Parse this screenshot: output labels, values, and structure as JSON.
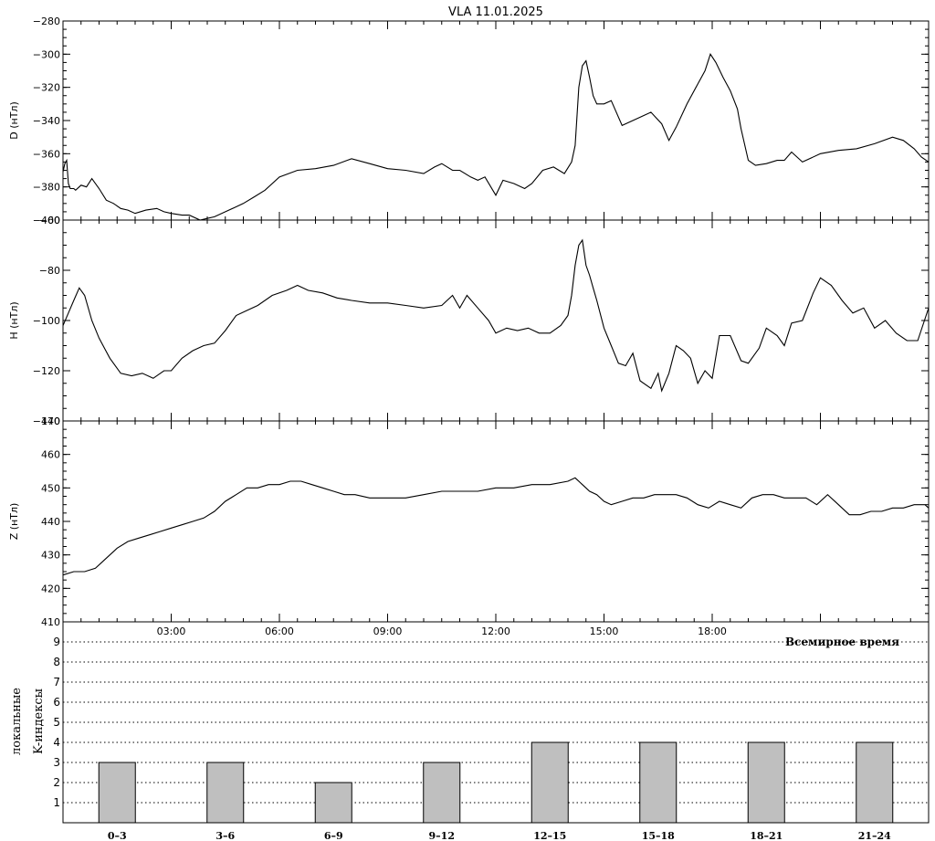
{
  "title": "VLA   11.01.2025",
  "time_axis_label": "Всемирное время",
  "time_ticks": [
    "03:00",
    "06:00",
    "09:00",
    "12:00",
    "15:00",
    "18:00"
  ],
  "k_axis_label_1": "локальные",
  "k_axis_label_2": "K-индексы",
  "colors": {
    "line": "#000000",
    "bar": "#bfbfbf",
    "frame": "#000000"
  },
  "chart_data": [
    {
      "type": "line",
      "ylabel": "D (нТл)",
      "ylim": [
        -400,
        -280
      ],
      "yticks": [
        "-280",
        "-300",
        "-320",
        "-340",
        "-360",
        "-380",
        "-400"
      ],
      "x_unit": "hours UT",
      "xlim": [
        0,
        24
      ],
      "x": [
        0.0,
        0.05,
        0.1,
        0.15,
        0.2,
        0.3,
        0.35,
        0.5,
        0.65,
        0.8,
        1.0,
        1.2,
        1.4,
        1.6,
        1.8,
        2.0,
        2.3,
        2.6,
        2.8,
        3.0,
        3.3,
        3.5,
        3.8,
        4.0,
        4.2,
        4.5,
        4.8,
        5.0,
        5.3,
        5.6,
        6.0,
        6.5,
        7.0,
        7.5,
        8.0,
        8.5,
        9.0,
        9.5,
        10.0,
        10.3,
        10.5,
        10.8,
        11.0,
        11.3,
        11.5,
        11.7,
        12.0,
        12.2,
        12.5,
        12.8,
        13.0,
        13.3,
        13.6,
        13.9,
        14.1,
        14.2,
        14.3,
        14.4,
        14.5,
        14.6,
        14.7,
        14.8,
        15.0,
        15.2,
        15.5,
        16.0,
        16.3,
        16.6,
        16.8,
        17.0,
        17.3,
        17.6,
        17.8,
        17.95,
        18.1,
        18.3,
        18.5,
        18.7,
        18.8,
        19.0,
        19.2,
        19.5,
        19.8,
        20.0,
        20.2,
        20.5,
        21.0,
        21.5,
        22.0,
        22.5,
        23.0,
        23.3,
        23.6,
        23.8,
        24.0
      ],
      "values": [
        -371,
        -366,
        -364,
        -378,
        -381,
        -381,
        -382,
        -379,
        -380,
        -375,
        -381,
        -388,
        -390,
        -393,
        -394,
        -396,
        -394,
        -393,
        -395,
        -396,
        -397,
        -397,
        -400,
        -399,
        -398,
        -395,
        -392,
        -390,
        -386,
        -382,
        -374,
        -370,
        -369,
        -367,
        -363,
        -366,
        -369,
        -370,
        -372,
        -368,
        -366,
        -370,
        -370,
        -374,
        -376,
        -374,
        -385,
        -376,
        -378,
        -381,
        -378,
        -370,
        -368,
        -372,
        -365,
        -355,
        -320,
        -307,
        -304,
        -314,
        -325,
        -330,
        -330,
        -328,
        -343,
        -338,
        -335,
        -342,
        -352,
        -344,
        -330,
        -318,
        -310,
        -300,
        -305,
        -314,
        -322,
        -333,
        -345,
        -364,
        -367,
        -366,
        -364,
        -364,
        -359,
        -365,
        -360,
        -358,
        -357,
        -354,
        -350,
        -352,
        -357,
        -362,
        -365
      ]
    },
    {
      "type": "line",
      "ylabel": "H (нТл)",
      "ylim": [
        -140,
        -60
      ],
      "yticks": [
        "-60",
        "-80",
        "-100",
        "-120",
        "-140"
      ],
      "x_unit": "hours UT",
      "xlim": [
        0,
        24
      ],
      "x": [
        0.0,
        0.15,
        0.3,
        0.45,
        0.6,
        0.8,
        1.0,
        1.3,
        1.6,
        1.9,
        2.2,
        2.5,
        2.8,
        3.0,
        3.3,
        3.6,
        3.9,
        4.2,
        4.5,
        4.8,
        5.1,
        5.4,
        5.8,
        6.2,
        6.5,
        6.8,
        7.2,
        7.6,
        8.0,
        8.5,
        9.0,
        9.5,
        10.0,
        10.5,
        10.8,
        11.0,
        11.2,
        11.5,
        11.8,
        12.0,
        12.3,
        12.6,
        12.9,
        13.2,
        13.5,
        13.8,
        14.0,
        14.1,
        14.2,
        14.3,
        14.4,
        14.5,
        14.6,
        14.7,
        14.8,
        15.0,
        15.2,
        15.4,
        15.6,
        15.8,
        16.0,
        16.3,
        16.5,
        16.6,
        16.8,
        17.0,
        17.2,
        17.4,
        17.6,
        17.8,
        18.0,
        18.2,
        18.5,
        18.8,
        19.0,
        19.3,
        19.5,
        19.8,
        20.0,
        20.2,
        20.5,
        20.8,
        21.0,
        21.3,
        21.6,
        21.9,
        22.2,
        22.5,
        22.8,
        23.1,
        23.4,
        23.7,
        24.0
      ],
      "values": [
        -102,
        -97,
        -92,
        -87,
        -90,
        -100,
        -107,
        -115,
        -121,
        -122,
        -121,
        -123,
        -120,
        -120,
        -115,
        -112,
        -110,
        -109,
        -104,
        -98,
        -96,
        -94,
        -90,
        -88,
        -86,
        -88,
        -89,
        -91,
        -92,
        -93,
        -93,
        -94,
        -95,
        -94,
        -90,
        -95,
        -90,
        -95,
        -100,
        -105,
        -103,
        -104,
        -103,
        -105,
        -105,
        -102,
        -98,
        -90,
        -78,
        -70,
        -68,
        -78,
        -82,
        -87,
        -92,
        -103,
        -110,
        -117,
        -118,
        -113,
        -124,
        -127,
        -121,
        -128,
        -121,
        -110,
        -112,
        -115,
        -125,
        -120,
        -123,
        -106,
        -106,
        -116,
        -117,
        -111,
        -103,
        -106,
        -110,
        -101,
        -100,
        -89,
        -83,
        -86,
        -92,
        -97,
        -95,
        -103,
        -100,
        -105,
        -108,
        -108,
        -95
      ]
    },
    {
      "type": "line",
      "ylabel": "Z (нТл)",
      "ylim": [
        410,
        470
      ],
      "yticks": [
        "470",
        "460",
        "450",
        "440",
        "430",
        "420",
        "410"
      ],
      "x_unit": "hours UT",
      "xlim": [
        0,
        24
      ],
      "x": [
        0.0,
        0.3,
        0.6,
        0.9,
        1.2,
        1.5,
        1.8,
        2.1,
        2.4,
        2.7,
        3.0,
        3.3,
        3.6,
        3.9,
        4.2,
        4.5,
        4.8,
        5.1,
        5.4,
        5.7,
        6.0,
        6.3,
        6.6,
        6.9,
        7.2,
        7.5,
        7.8,
        8.1,
        8.5,
        9.0,
        9.5,
        10.0,
        10.5,
        11.0,
        11.5,
        12.0,
        12.5,
        13.0,
        13.5,
        14.0,
        14.2,
        14.4,
        14.6,
        14.8,
        15.0,
        15.2,
        15.5,
        15.8,
        16.1,
        16.4,
        16.7,
        17.0,
        17.3,
        17.6,
        17.9,
        18.2,
        18.5,
        18.8,
        19.1,
        19.4,
        19.7,
        20.0,
        20.3,
        20.6,
        20.9,
        21.2,
        21.5,
        21.8,
        22.1,
        22.4,
        22.7,
        23.0,
        23.3,
        23.6,
        23.9,
        24.0
      ],
      "values": [
        424,
        425,
        425,
        426,
        429,
        432,
        434,
        435,
        436,
        437,
        438,
        439,
        440,
        441,
        443,
        446,
        448,
        450,
        450,
        451,
        451,
        452,
        452,
        451,
        450,
        449,
        448,
        448,
        447,
        447,
        447,
        448,
        449,
        449,
        449,
        450,
        450,
        451,
        451,
        452,
        453,
        451,
        449,
        448,
        446,
        445,
        446,
        447,
        447,
        448,
        448,
        448,
        447,
        445,
        444,
        446,
        445,
        444,
        447,
        448,
        448,
        447,
        447,
        447,
        445,
        448,
        445,
        442,
        442,
        443,
        443,
        444,
        444,
        445,
        445,
        444
      ]
    },
    {
      "type": "bar",
      "ylabel": "локальные K-индексы",
      "ylim": [
        0,
        10
      ],
      "yticks": [
        "1",
        "2",
        "3",
        "4",
        "5",
        "6",
        "7",
        "8",
        "9"
      ],
      "categories": [
        "0–3",
        "3–6",
        "6–9",
        "9–12",
        "12–15",
        "15–18",
        "18–21",
        "21–24"
      ],
      "values": [
        3,
        3,
        2,
        3,
        4,
        4,
        4,
        4
      ],
      "grid": true
    }
  ]
}
